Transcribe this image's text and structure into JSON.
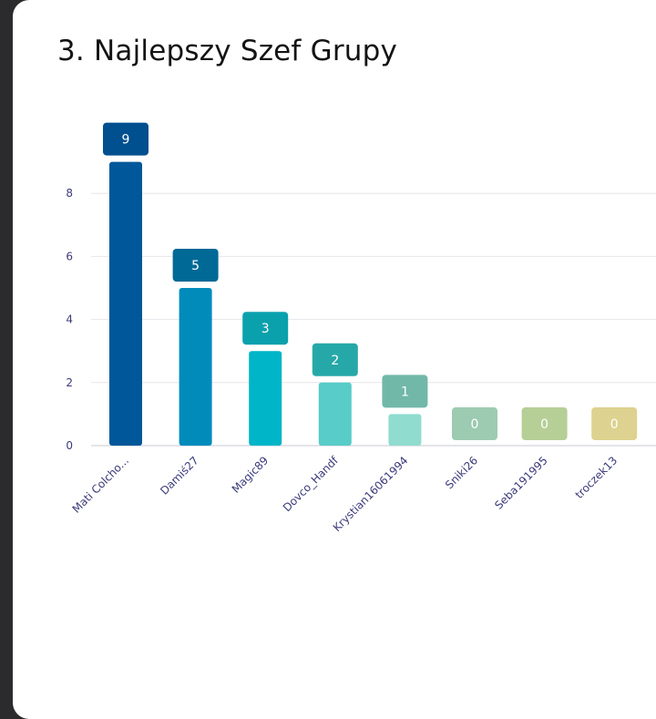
{
  "card": {
    "title": "3. Najlepszy Szef Grupy"
  },
  "chart_data": {
    "type": "bar",
    "title": "3. Najlepszy Szef Grupy",
    "categories": [
      "Mati Colcho...",
      "Damiś27",
      "Magic89",
      "Dovco_Handf",
      "Krystian16061994",
      "Sniki26",
      "Seba191995",
      "troczek13"
    ],
    "values": [
      9,
      5,
      3,
      2,
      1,
      0,
      0,
      0
    ],
    "yticks": [
      0,
      2,
      4,
      6,
      8
    ],
    "ylim": [
      0,
      9
    ],
    "grid": true,
    "legend": "none",
    "colors": [
      "#00579a",
      "#008bbb",
      "#00b5c8",
      "#57ccc8",
      "#90dccf",
      "#9ccbb1",
      "#b5cf97",
      "#ddd28f"
    ],
    "label_colors": [
      "#004f8f",
      "#006996",
      "#0aa1ad",
      "#27a8a8",
      "#72b8a9",
      "#9ccbb1",
      "#b5cf97",
      "#ddd28f"
    ]
  }
}
